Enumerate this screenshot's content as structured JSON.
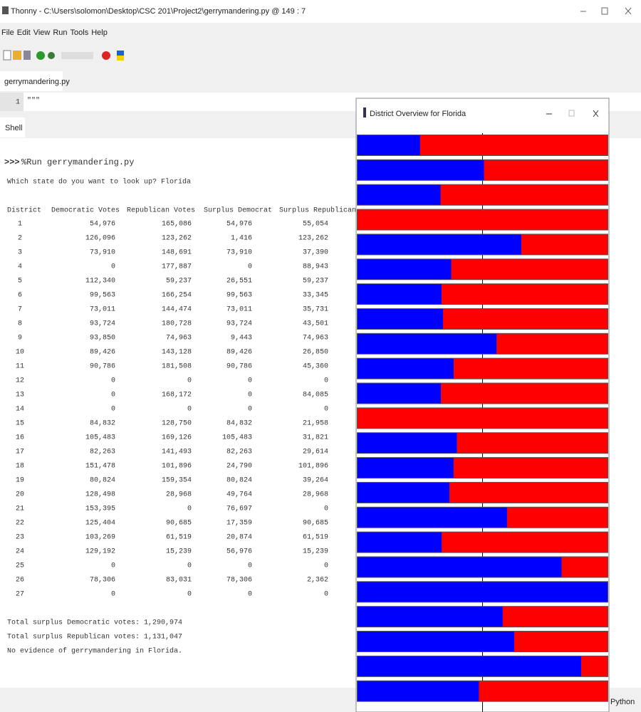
{
  "window": {
    "title": "Thonny  -  C:\\Users\\solomon\\Desktop\\CSC 201\\Project2\\gerrymandering.py  @  149 : 7"
  },
  "menu": [
    "File",
    "Edit",
    "View",
    "Run",
    "Tools",
    "Help"
  ],
  "editor": {
    "tab": "gerrymandering.py",
    "line_number": "1",
    "code": "\"\"\""
  },
  "shell": {
    "tab": "Shell",
    "prompt": ">>>",
    "command": "%Run gerrymandering.py",
    "question": "Which state do you want to look up?",
    "answer": "Florida",
    "table": {
      "headers": [
        "District",
        "Democratic Votes",
        "Republican Votes",
        "Surplus Democrat",
        "Surplus Republican"
      ],
      "rows": [
        [
          "1",
          "54,976",
          "165,086",
          "54,976",
          "55,054"
        ],
        [
          "2",
          "126,096",
          "123,262",
          "1,416",
          "123,262"
        ],
        [
          "3",
          "73,910",
          "148,691",
          "73,910",
          "37,390"
        ],
        [
          "4",
          "0",
          "177,887",
          "0",
          "88,943"
        ],
        [
          "5",
          "112,340",
          "59,237",
          "26,551",
          "59,237"
        ],
        [
          "6",
          "99,563",
          "166,254",
          "99,563",
          "33,345"
        ],
        [
          "7",
          "73,011",
          "144,474",
          "73,011",
          "35,731"
        ],
        [
          "8",
          "93,724",
          "180,728",
          "93,724",
          "43,501"
        ],
        [
          "9",
          "93,850",
          "74,963",
          "9,443",
          "74,963"
        ],
        [
          "10",
          "89,426",
          "143,128",
          "89,426",
          "26,850"
        ],
        [
          "11",
          "90,786",
          "181,508",
          "90,786",
          "45,360"
        ],
        [
          "12",
          "0",
          "0",
          "0",
          "0"
        ],
        [
          "13",
          "0",
          "168,172",
          "0",
          "84,085"
        ],
        [
          "14",
          "0",
          "0",
          "0",
          "0"
        ],
        [
          "15",
          "84,832",
          "128,750",
          "84,832",
          "21,958"
        ],
        [
          "16",
          "105,483",
          "169,126",
          "105,483",
          "31,821"
        ],
        [
          "17",
          "82,263",
          "141,493",
          "82,263",
          "29,614"
        ],
        [
          "18",
          "151,478",
          "101,896",
          "24,790",
          "101,896"
        ],
        [
          "19",
          "80,824",
          "159,354",
          "80,824",
          "39,264"
        ],
        [
          "20",
          "128,498",
          "28,968",
          "49,764",
          "28,968"
        ],
        [
          "21",
          "153,395",
          "0",
          "76,697",
          "0"
        ],
        [
          "22",
          "125,404",
          "90,685",
          "17,359",
          "90,685"
        ],
        [
          "23",
          "103,269",
          "61,519",
          "20,874",
          "61,519"
        ],
        [
          "24",
          "129,192",
          "15,239",
          "56,976",
          "15,239"
        ],
        [
          "25",
          "0",
          "0",
          "0",
          "0"
        ],
        [
          "26",
          "78,306",
          "83,031",
          "78,306",
          "2,362"
        ],
        [
          "27",
          "0",
          "0",
          "0",
          "0"
        ]
      ]
    },
    "summary": [
      "Total surplus Democratic votes: 1,290,974",
      "Total surplus Republican votes: 1,131,047",
      "No evidence of gerrymandering in Florida."
    ]
  },
  "popup": {
    "title": "District Overview for Florida"
  },
  "status": "Python"
}
